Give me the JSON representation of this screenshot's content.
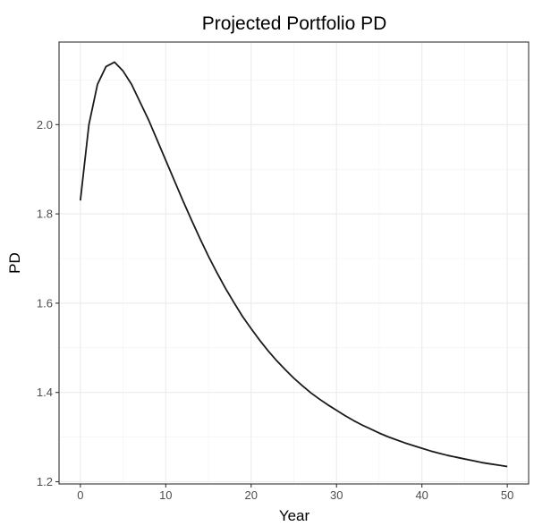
{
  "chart_data": {
    "type": "line",
    "title": "Projected Portfolio PD",
    "xlabel": "Year",
    "ylabel": "PD",
    "xlim": [
      -2.5,
      52.5
    ],
    "ylim": [
      1.195,
      2.185
    ],
    "x_ticks": [
      0,
      10,
      20,
      30,
      40,
      50
    ],
    "y_ticks": [
      1.2,
      1.4,
      1.6,
      1.8,
      2.0
    ],
    "x_tick_labels": [
      "0",
      "10",
      "20",
      "30",
      "40",
      "50"
    ],
    "y_tick_labels": [
      "1.2",
      "1.4",
      "1.6",
      "1.8",
      "2.0"
    ],
    "grid": true,
    "legend": "none",
    "colors": {
      "line": "#1a1a1a",
      "grid": "#ebebeb",
      "border": "#333333"
    },
    "series": [
      {
        "x": [
          0,
          1,
          2,
          3,
          4,
          5,
          6,
          7,
          8,
          9,
          10,
          11,
          12,
          13,
          14,
          15,
          16,
          17,
          18,
          19,
          20,
          21,
          22,
          23,
          24,
          25,
          26,
          27,
          28,
          29,
          30,
          31,
          32,
          33,
          34,
          35,
          36,
          37,
          38,
          39,
          40,
          41,
          42,
          43,
          44,
          45,
          46,
          47,
          48,
          49,
          50
        ],
        "values": [
          1.83,
          2.0,
          2.09,
          2.13,
          2.14,
          2.12,
          2.09,
          2.05,
          2.01,
          1.965,
          1.92,
          1.875,
          1.83,
          1.787,
          1.745,
          1.705,
          1.668,
          1.633,
          1.601,
          1.57,
          1.543,
          1.517,
          1.493,
          1.471,
          1.451,
          1.432,
          1.415,
          1.399,
          1.385,
          1.372,
          1.36,
          1.348,
          1.337,
          1.327,
          1.318,
          1.309,
          1.301,
          1.294,
          1.287,
          1.281,
          1.275,
          1.269,
          1.264,
          1.259,
          1.255,
          1.251,
          1.247,
          1.243,
          1.24,
          1.237,
          1.234
        ]
      }
    ]
  }
}
